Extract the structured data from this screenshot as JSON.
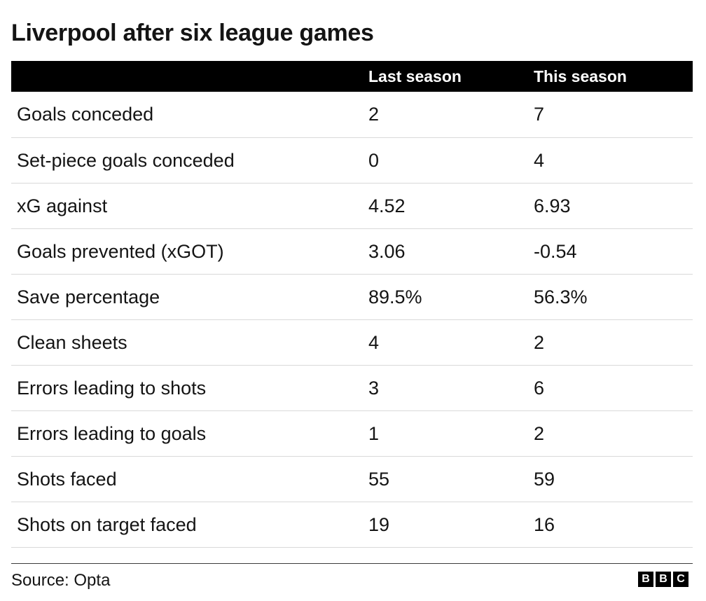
{
  "title": "Liverpool after six league games",
  "chart_data": {
    "type": "table",
    "title": "Liverpool after six league games",
    "columns": [
      "",
      "Last season",
      "This season"
    ],
    "rows": [
      {
        "label": "Goals conceded",
        "last": "2",
        "this": "7"
      },
      {
        "label": "Set-piece goals conceded",
        "last": "0",
        "this": "4"
      },
      {
        "label": "xG against",
        "last": "4.52",
        "this": "6.93"
      },
      {
        "label": "Goals prevented (xGOT)",
        "last": "3.06",
        "this": "-0.54"
      },
      {
        "label": "Save percentage",
        "last": "89.5%",
        "this": "56.3%"
      },
      {
        "label": "Clean sheets",
        "last": "4",
        "this": "2"
      },
      {
        "label": "Errors leading to shots",
        "last": "3",
        "this": "6"
      },
      {
        "label": "Errors leading to goals",
        "last": "1",
        "this": "2"
      },
      {
        "label": "Shots faced",
        "last": "55",
        "this": "59"
      },
      {
        "label": "Shots on target faced",
        "last": "19",
        "this": "16"
      }
    ]
  },
  "footer": {
    "source": "Source: Opta",
    "logo_letters": [
      "B",
      "B",
      "C"
    ]
  },
  "colors": {
    "header_bg": "#000000",
    "header_text": "#ffffff",
    "row_divider": "#d9d9d9",
    "text": "#141414"
  }
}
